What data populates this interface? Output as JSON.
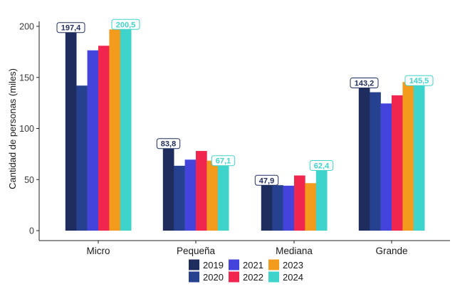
{
  "chart_data": {
    "type": "bar",
    "ylabel": "Cantidad de personas (miles)",
    "xlabel": "",
    "ylim": [
      0,
      210
    ],
    "yticks": [
      0,
      50,
      100,
      150,
      200
    ],
    "categories": [
      "Micro",
      "Pequeña",
      "Mediana",
      "Grande"
    ],
    "series": [
      {
        "name": "2019",
        "color": "#1f2d5e",
        "values": [
          197.4,
          83.8,
          47.9,
          143.2
        ]
      },
      {
        "name": "2020",
        "color": "#26418f",
        "values": [
          142,
          63.5,
          44.5,
          135.5
        ]
      },
      {
        "name": "2021",
        "color": "#4444dd",
        "values": [
          176.5,
          69.5,
          44,
          124.5
        ]
      },
      {
        "name": "2022",
        "color": "#f0264f",
        "values": [
          181,
          78,
          54,
          132.5
        ]
      },
      {
        "name": "2023",
        "color": "#f29b1d",
        "values": [
          197,
          68.5,
          46.5,
          145.5
        ]
      },
      {
        "name": "2024",
        "color": "#3ed4cc",
        "values": [
          200.5,
          67.1,
          62.4,
          145.5
        ]
      }
    ],
    "data_labels": [
      {
        "category": "Micro",
        "series": "2019",
        "text": "197,4"
      },
      {
        "category": "Micro",
        "series": "2024",
        "text": "200,5"
      },
      {
        "category": "Pequeña",
        "series": "2019",
        "text": "83,8"
      },
      {
        "category": "Pequeña",
        "series": "2024",
        "text": "67,1"
      },
      {
        "category": "Mediana",
        "series": "2019",
        "text": "47,9"
      },
      {
        "category": "Mediana",
        "series": "2024",
        "text": "62,4"
      },
      {
        "category": "Grande",
        "series": "2019",
        "text": "143,2"
      },
      {
        "category": "Grande",
        "series": "2024",
        "text": "145,5"
      }
    ],
    "legend": {
      "position": "bottom",
      "columns": 3
    },
    "grid": false
  }
}
